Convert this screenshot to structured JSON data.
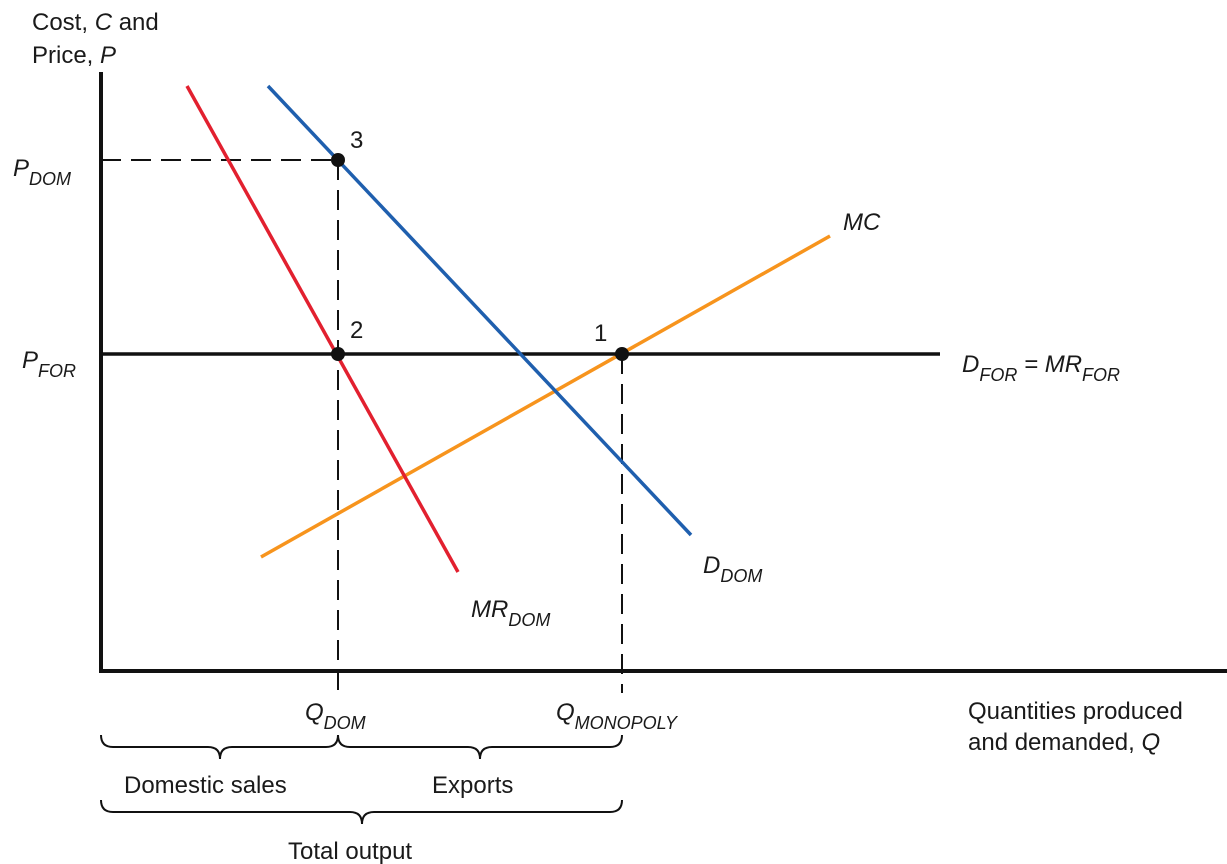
{
  "y_axis": {
    "label_line1_prefix": "Cost, ",
    "label_line1_var": "C",
    "label_line1_suffix": " and",
    "label_line2_prefix": "Price, ",
    "label_line2_var": "P"
  },
  "x_axis": {
    "label_line1": "Quantities produced",
    "label_line2_prefix": "and demanded, ",
    "label_line2_var": "Q"
  },
  "price_labels": {
    "p_dom": {
      "main": "P",
      "sub": "DOM"
    },
    "p_for": {
      "main": "P",
      "sub": "FOR"
    }
  },
  "quantity_labels": {
    "q_dom": {
      "main": "Q",
      "sub": "DOM"
    },
    "q_monopoly": {
      "main": "Q",
      "sub": "MONOPOLY"
    }
  },
  "curves": {
    "mc": {
      "label": "MC",
      "color": "#f7941d"
    },
    "d_dom": {
      "main": "D",
      "sub": "DOM",
      "color": "#1f5fae"
    },
    "mr_dom": {
      "main": "MR",
      "sub": "DOM",
      "color": "#e2202f"
    },
    "d_for": {
      "main1": "D",
      "sub1": "FOR",
      "eq": " = MR",
      "sub2": "FOR",
      "color": "#111111"
    }
  },
  "points": [
    {
      "label": "1"
    },
    {
      "label": "2"
    },
    {
      "label": "3"
    }
  ],
  "braces": {
    "domestic_sales": "Domestic sales",
    "exports": "Exports",
    "total_output": "Total output"
  }
}
